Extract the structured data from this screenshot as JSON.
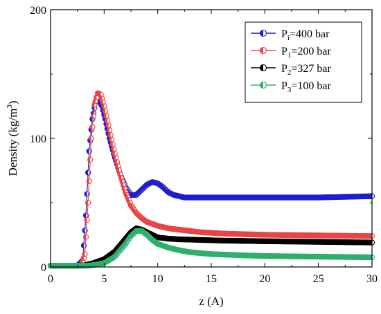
{
  "chart_data": {
    "type": "scatter",
    "xlabel": "z (A)",
    "ylabel_main": "Density (kg/m",
    "ylabel_sup": "3",
    "ylabel_tail": ")",
    "xlim": [
      0,
      30
    ],
    "ylim": [
      0,
      200
    ],
    "xticks": [
      0,
      5,
      10,
      15,
      20,
      25,
      30
    ],
    "yticks": [
      0,
      100,
      200
    ],
    "xtick_labels": [
      "0",
      "5",
      "10",
      "15",
      "20",
      "25",
      "30"
    ],
    "ytick_labels": [
      "0",
      "100",
      "200"
    ],
    "grid": false,
    "legend_position": "top-right",
    "series": [
      {
        "name": "Pi=400 bar",
        "legend_main": "P",
        "legend_sub": "i",
        "legend_tail": "=400 bar",
        "color": "#1f1fd0",
        "x": [
          0,
          2.5,
          3.0,
          3.3,
          3.6,
          3.9,
          4.2,
          4.5,
          4.8,
          5.1,
          5.5,
          6.0,
          6.5,
          7.0,
          7.5,
          8.0,
          8.5,
          9.0,
          9.5,
          10.0,
          10.5,
          11.0,
          11.5,
          12.0,
          12.5,
          13.0,
          15.0,
          20.0,
          25.0,
          30.0
        ],
        "y": [
          1,
          1,
          5,
          40,
          90,
          115,
          128,
          130,
          125,
          115,
          100,
          85,
          72,
          62,
          56,
          56,
          60,
          64,
          66,
          65,
          62,
          58,
          56,
          55,
          54,
          54,
          54,
          54,
          54,
          55
        ]
      },
      {
        "name": "P1=200 bar",
        "legend_main": "P",
        "legend_sub": "1",
        "legend_tail": "=200 bar",
        "color": "#e84545",
        "x": [
          0,
          2.9,
          3.2,
          3.5,
          3.8,
          4.1,
          4.4,
          4.7,
          5.0,
          5.4,
          6.0,
          6.5,
          7.0,
          7.5,
          8.0,
          8.5,
          9.0,
          10.0,
          11.0,
          12.0,
          14.0,
          16.0,
          20.0,
          25.0,
          30.0
        ],
        "y": [
          1,
          1,
          10,
          50,
          100,
          126,
          135,
          134,
          125,
          110,
          88,
          72,
          58,
          48,
          42,
          38,
          35,
          32,
          30,
          29,
          27,
          26,
          25,
          24.5,
          24
        ]
      },
      {
        "name": "P2=327 bar",
        "legend_main": "P",
        "legend_sub": "2",
        "legend_tail": "=327 bar",
        "color": "#000000",
        "x": [
          0,
          3.0,
          3.5,
          4.0,
          5.0,
          6.0,
          7.0,
          7.5,
          8.0,
          8.5,
          9.0,
          9.5,
          10.0,
          11.0,
          12.0,
          14.0,
          16.0,
          20.0,
          25.0,
          30.0
        ],
        "y": [
          1,
          1,
          2,
          3,
          6,
          12,
          22,
          27,
          30,
          29,
          27,
          25,
          23,
          22,
          21.5,
          21,
          20.5,
          20,
          19.5,
          19
        ]
      },
      {
        "name": "P3=100 bar",
        "legend_main": "P",
        "legend_sub": "3",
        "legend_tail": "=100 bar",
        "color": "#2eaf6e",
        "x": [
          0,
          3.5,
          4.0,
          5.0,
          6.0,
          7.0,
          7.5,
          8.0,
          8.5,
          9.0,
          9.5,
          10.0,
          11.0,
          12.0,
          13.0,
          15.0,
          18.0,
          20.0,
          25.0,
          30.0
        ],
        "y": [
          1,
          1,
          1.5,
          3,
          8,
          18,
          24,
          28,
          28,
          25,
          21,
          18,
          15,
          13,
          11.5,
          10,
          9,
          8.5,
          8,
          7.5
        ]
      }
    ]
  }
}
